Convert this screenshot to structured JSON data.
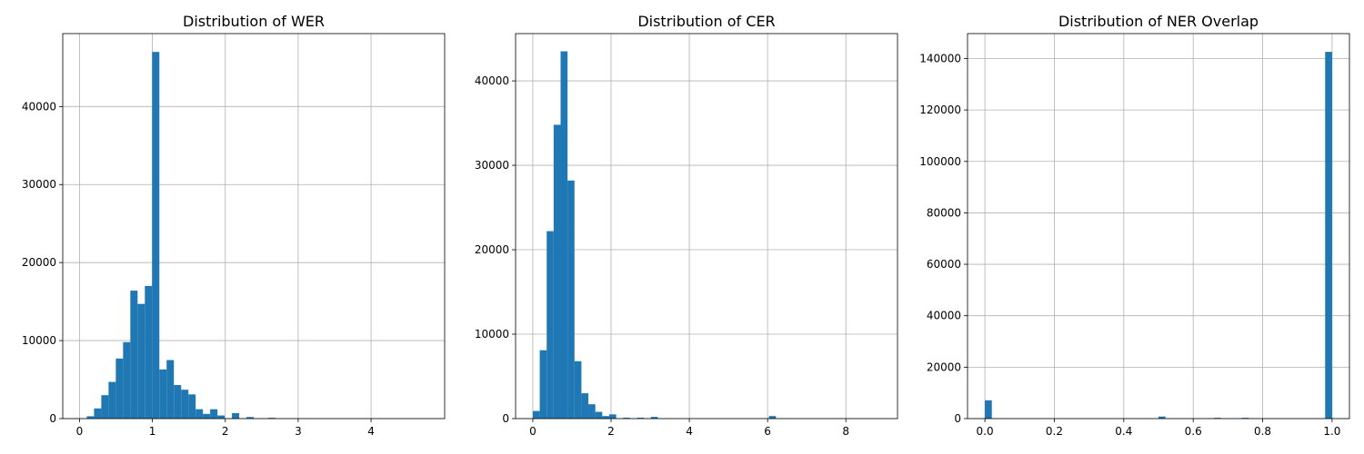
{
  "chart_data": [
    {
      "type": "bar",
      "title": "Distribution of WER",
      "xlabel": "",
      "ylabel": "",
      "grid": true,
      "bar_color": "#1f77b4",
      "xlim": [
        -0.23,
        5.01
      ],
      "ylim": [
        0,
        49350
      ],
      "xticks": [
        0,
        1,
        2,
        3,
        4
      ],
      "yticks": [
        0,
        10000,
        20000,
        30000,
        40000
      ],
      "bin_start": 0.0,
      "bin_width": 0.0996,
      "values": [
        0,
        300,
        1300,
        3000,
        4700,
        7700,
        9800,
        16400,
        14700,
        17000,
        47000,
        6300,
        7500,
        4300,
        3700,
        3100,
        1200,
        600,
        1200,
        400,
        0,
        700,
        0,
        200,
        0,
        0,
        100,
        0,
        0,
        0,
        0,
        0,
        0,
        0,
        0,
        0,
        0,
        0,
        0,
        0,
        0,
        0,
        0,
        0,
        0,
        0,
        0,
        0,
        0,
        0
      ]
    },
    {
      "type": "bar",
      "title": "Distribution of CER",
      "xlabel": "",
      "ylabel": "",
      "grid": true,
      "bar_color": "#1f77b4",
      "xlim": [
        -0.44,
        9.32
      ],
      "ylim": [
        0,
        45600
      ],
      "xticks": [
        0,
        2,
        4,
        6,
        8
      ],
      "yticks": [
        0,
        10000,
        20000,
        30000,
        40000
      ],
      "bin_start": 0.0,
      "bin_width": 0.1775,
      "values": [
        900,
        8100,
        22200,
        34800,
        43500,
        28200,
        6800,
        3000,
        1700,
        800,
        300,
        500,
        0,
        100,
        0,
        100,
        0,
        200,
        0,
        0,
        0,
        0,
        0,
        0,
        0,
        0,
        0,
        0,
        0,
        0,
        0,
        0,
        0,
        0,
        300,
        0,
        0,
        0,
        0,
        0,
        0,
        0,
        0,
        0,
        0,
        0,
        0,
        0,
        0,
        0
      ]
    },
    {
      "type": "bar",
      "title": "Distribution of NER Overlap",
      "xlabel": "",
      "ylabel": "",
      "grid": true,
      "bar_color": "#1f77b4",
      "xlim": [
        -0.05,
        1.05
      ],
      "ylim": [
        0,
        149700
      ],
      "xticks": [
        0.0,
        0.2,
        0.4,
        0.6,
        0.8,
        1.0
      ],
      "xtick_labels": [
        "0.0",
        "0.2",
        "0.4",
        "0.6",
        "0.8",
        "1.0"
      ],
      "yticks": [
        0,
        20000,
        40000,
        60000,
        80000,
        100000,
        120000,
        140000
      ],
      "bin_start": 0.0,
      "bin_width": 0.02,
      "values": [
        7100,
        0,
        0,
        0,
        0,
        0,
        0,
        0,
        0,
        0,
        0,
        0,
        0,
        0,
        0,
        0,
        0,
        0,
        0,
        0,
        0,
        0,
        0,
        0,
        0,
        800,
        0,
        0,
        0,
        0,
        0,
        0,
        0,
        300,
        0,
        0,
        0,
        300,
        0,
        0,
        0,
        0,
        0,
        0,
        0,
        0,
        0,
        0,
        0,
        142600
      ]
    }
  ]
}
